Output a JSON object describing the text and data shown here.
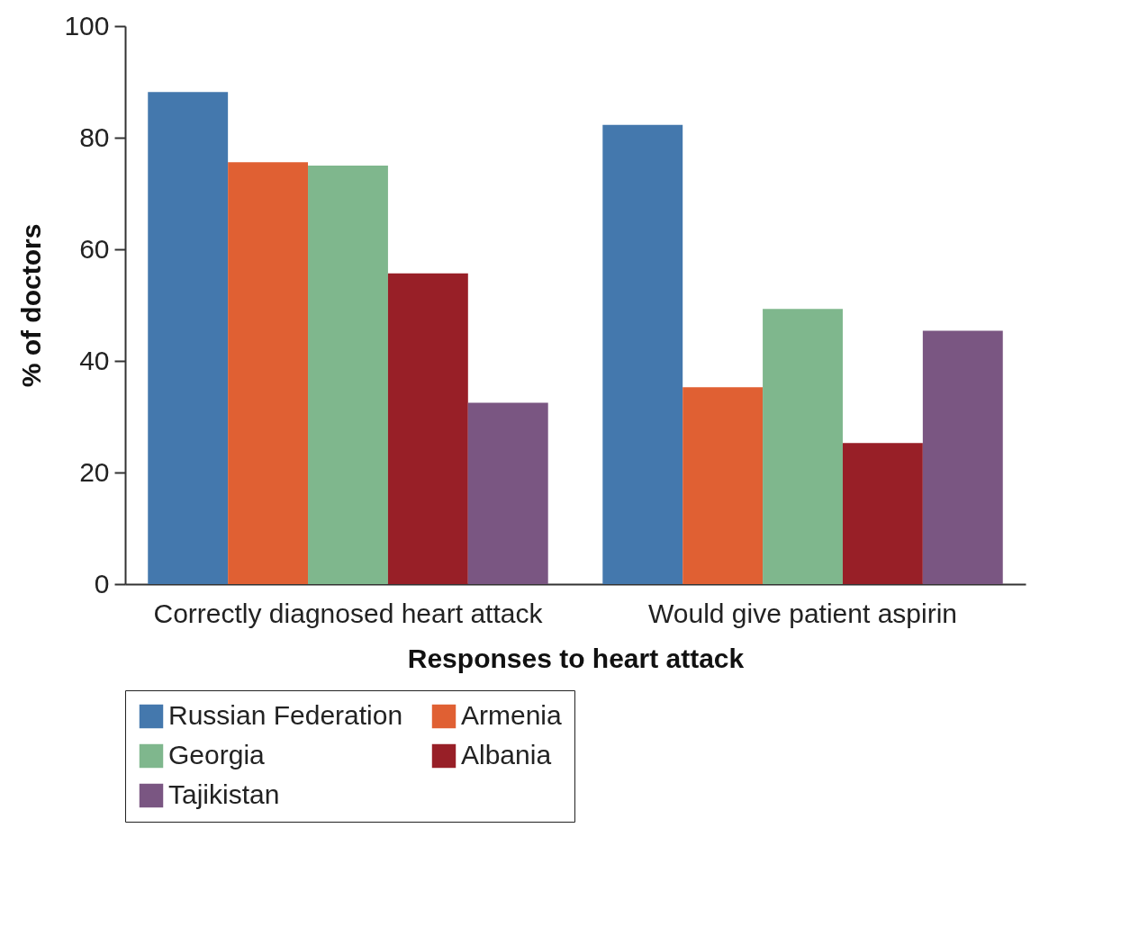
{
  "chart_data": {
    "type": "bar",
    "xlabel": "Responses to heart attack",
    "ylabel": "% of doctors",
    "categories": [
      "Correctly diagnosed heart attack",
      "Would give patient aspirin"
    ],
    "series": [
      {
        "name": "Russian Federation",
        "color": "#4478ad",
        "values": [
          88.2,
          82.3
        ]
      },
      {
        "name": "Armenia",
        "color": "#e06033",
        "values": [
          75.6,
          35.3
        ]
      },
      {
        "name": "Georgia",
        "color": "#7fb78d",
        "values": [
          75.0,
          49.3
        ]
      },
      {
        "name": "Albania",
        "color": "#981f27",
        "values": [
          55.7,
          25.3
        ]
      },
      {
        "name": "Tajikistan",
        "color": "#7a5682",
        "values": [
          32.5,
          45.4
        ]
      }
    ],
    "ylim": [
      0,
      100
    ],
    "yticks": [
      0,
      20,
      40,
      60,
      80,
      100
    ],
    "grid": false,
    "legend": "bottom"
  }
}
